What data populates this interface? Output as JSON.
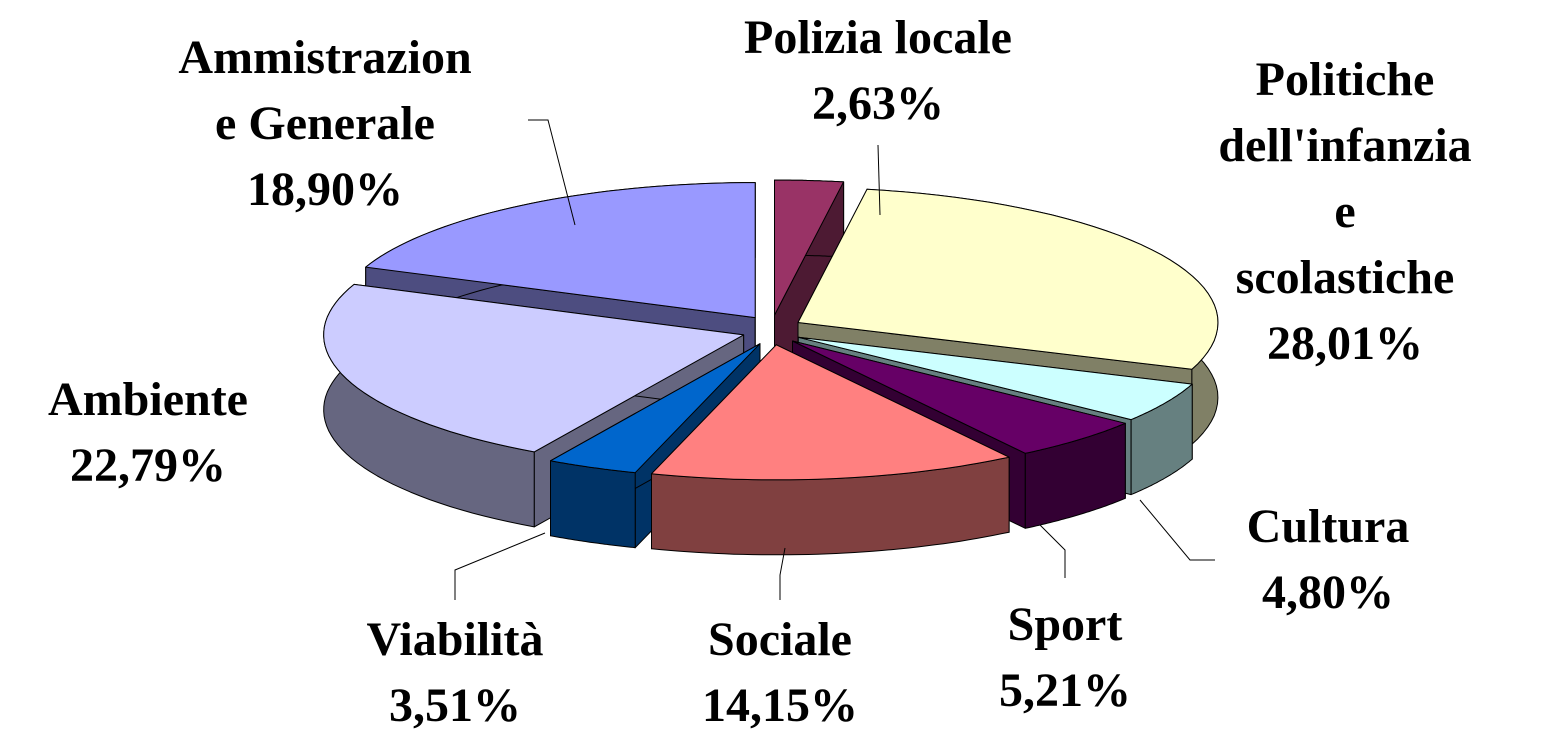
{
  "chart_data": {
    "type": "pie",
    "categories": [
      "Polizia locale",
      "Politiche\ndell'infanzia e\nscolastiche",
      "Cultura",
      "Sport",
      "Sociale",
      "Viabilità",
      "Ambiente",
      "Ammistrazion\ne Generale"
    ],
    "values": [
      2.63,
      28.01,
      4.8,
      5.21,
      14.15,
      3.51,
      22.79,
      18.9
    ],
    "value_labels": [
      "2,63%",
      "28,01%",
      "4,80%",
      "5,21%",
      "14,15%",
      "3,51%",
      "22,79%",
      "18,90%"
    ],
    "colors": [
      "#993366",
      "#ffffcc",
      "#ccffff",
      "#660066",
      "#ff8080",
      "#0066cc",
      "#ccccff",
      "#9999ff"
    ]
  }
}
